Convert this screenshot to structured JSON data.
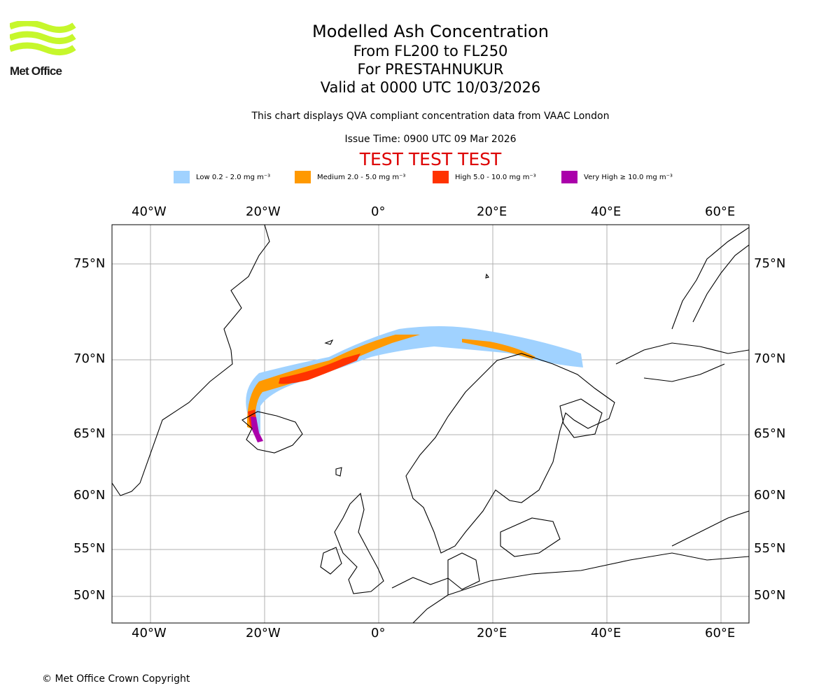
{
  "header": {
    "logo_text": "Met Office",
    "title": "Modelled Ash Concentration",
    "line2": "From FL200 to FL250",
    "line3": "For PRESTAHNUKUR",
    "line4": "Valid at 0000 UTC 10/03/2026",
    "subtitle": "This chart displays QVA compliant concentration data from VAAC London",
    "issue_time": "Issue Time: 0900 UTC 09 Mar 2026",
    "test_banner": "TEST TEST TEST"
  },
  "legend": [
    {
      "label": "Low 0.2 - 2.0 mg m⁻³",
      "color": "#a0d2ff"
    },
    {
      "label": "Medium 2.0 - 5.0 mg m⁻³",
      "color": "#ff9900"
    },
    {
      "label": "High 5.0 - 10.0 mg m⁻³",
      "color": "#ff3300"
    },
    {
      "label": "Very High ≥ 10.0 mg m⁻³",
      "color": "#aa00aa"
    }
  ],
  "axes": {
    "lon_labels": [
      "40°W",
      "20°W",
      "0°",
      "20°E",
      "40°E",
      "60°E"
    ],
    "lat_labels": [
      "75°N",
      "70°N",
      "65°N",
      "60°N",
      "55°N",
      "50°N"
    ]
  },
  "footer": {
    "copyright": "© Met Office Crown Copyright"
  }
}
